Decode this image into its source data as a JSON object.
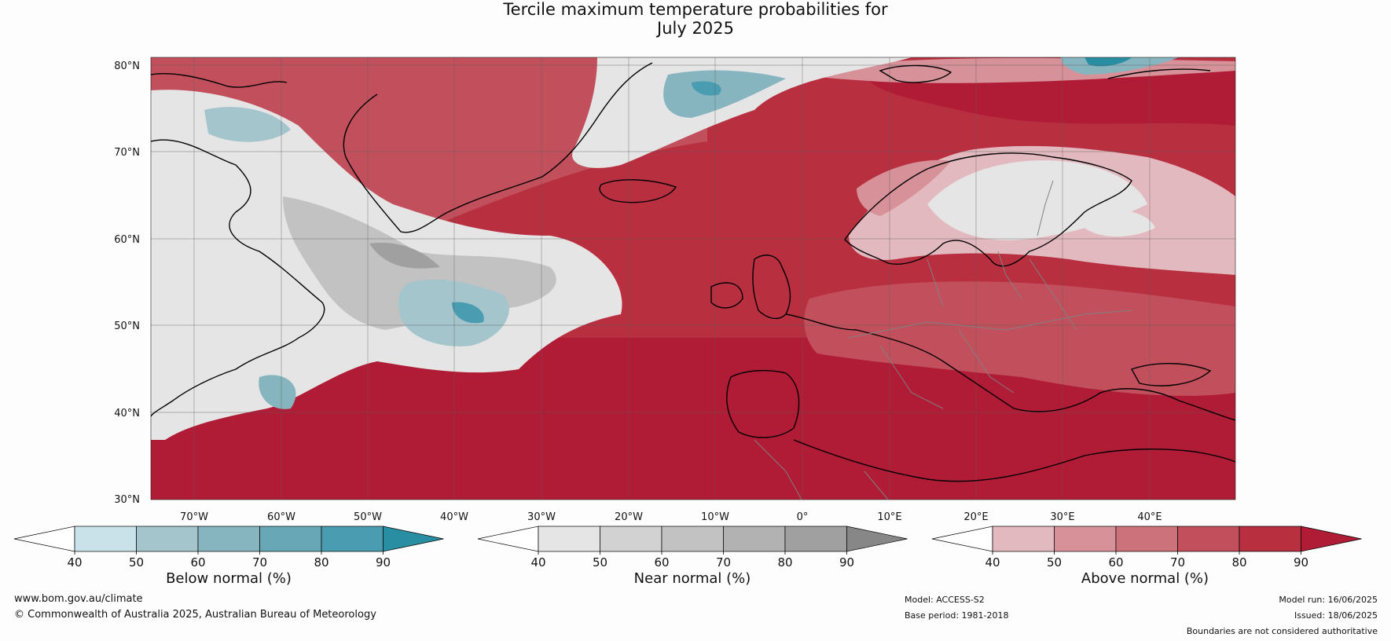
{
  "title": {
    "line1": "Tercile maximum temperature probabilities for",
    "line2": "July 2025"
  },
  "map": {
    "lat_labels": [
      "80°N",
      "70°N",
      "60°N",
      "50°N",
      "40°N",
      "30°N"
    ],
    "lon_labels": [
      "70°W",
      "60°W",
      "50°W",
      "40°W",
      "30°W",
      "20°W",
      "10°W",
      "0°",
      "10°E",
      "20°E",
      "30°E",
      "40°E"
    ],
    "colors": {
      "above": [
        "#e3b9c0",
        "#d69199",
        "#cb727b",
        "#c2505c",
        "#b82f40",
        "#b01c35"
      ],
      "near": [
        "#e5e5e5",
        "#d2d2d2",
        "#c2c2c2",
        "#b2b2b2",
        "#a0a0a0",
        "#878787"
      ],
      "below": [
        "#c9e1e8",
        "#a5c5cd",
        "#87b5bf",
        "#68a8b6",
        "#4a9db0",
        "#2a8ea3"
      ],
      "coast": "#000000",
      "borders": "#808080"
    }
  },
  "colorbars": [
    {
      "name": "below",
      "label": "Below normal (%)",
      "ticks": [
        "40",
        "50",
        "60",
        "70",
        "80",
        "90"
      ]
    },
    {
      "name": "near",
      "label": "Near normal (%)",
      "ticks": [
        "40",
        "50",
        "60",
        "70",
        "80",
        "90"
      ]
    },
    {
      "name": "above",
      "label": "Above normal (%)",
      "ticks": [
        "40",
        "50",
        "60",
        "70",
        "80",
        "90"
      ]
    }
  ],
  "footer": {
    "website": "www.bom.gov.au/climate",
    "copyright": "© Commonwealth of Australia 2025, Australian Bureau of Meteorology",
    "model": "Model: ACCESS-S2",
    "base_period": "Base period: 1981-2018",
    "model_run": "Model run: 16/06/2025",
    "issued": "Issued: 18/06/2025",
    "disclaimer": "Boundaries are not considered authoritative"
  }
}
